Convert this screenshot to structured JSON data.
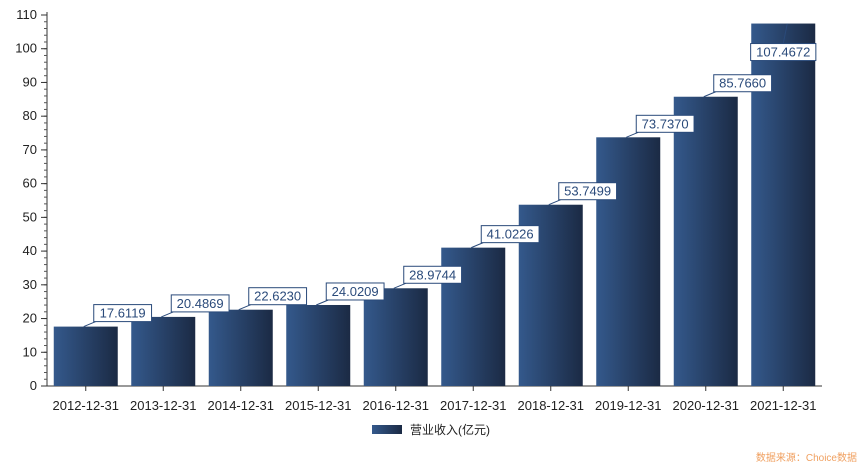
{
  "chart_data": {
    "type": "bar",
    "categories": [
      "2012-12-31",
      "2013-12-31",
      "2014-12-31",
      "2015-12-31",
      "2016-12-31",
      "2017-12-31",
      "2018-12-31",
      "2019-12-31",
      "2020-12-31",
      "2021-12-31"
    ],
    "series": [
      {
        "name": "营业收入(亿元)",
        "values": [
          17.6119,
          20.4869,
          22.623,
          24.0209,
          28.9744,
          41.0226,
          53.7499,
          73.737,
          85.766,
          107.4672
        ],
        "labels": [
          "17.6119",
          "20.4869",
          "22.6230",
          "24.0209",
          "28.9744",
          "41.0226",
          "53.7499",
          "73.7370",
          "85.7660",
          "107.4672"
        ]
      }
    ],
    "ylim": [
      0,
      110
    ],
    "yticks": [
      0,
      10,
      20,
      30,
      40,
      50,
      60,
      70,
      80,
      90,
      100,
      110
    ],
    "legend": "bottom-center",
    "grid": false,
    "colors": {
      "bar_light": "#34598c",
      "bar_dark": "#1b2a44",
      "label": "#2a4a7a"
    }
  },
  "source_note": "数据来源：Choice数据"
}
